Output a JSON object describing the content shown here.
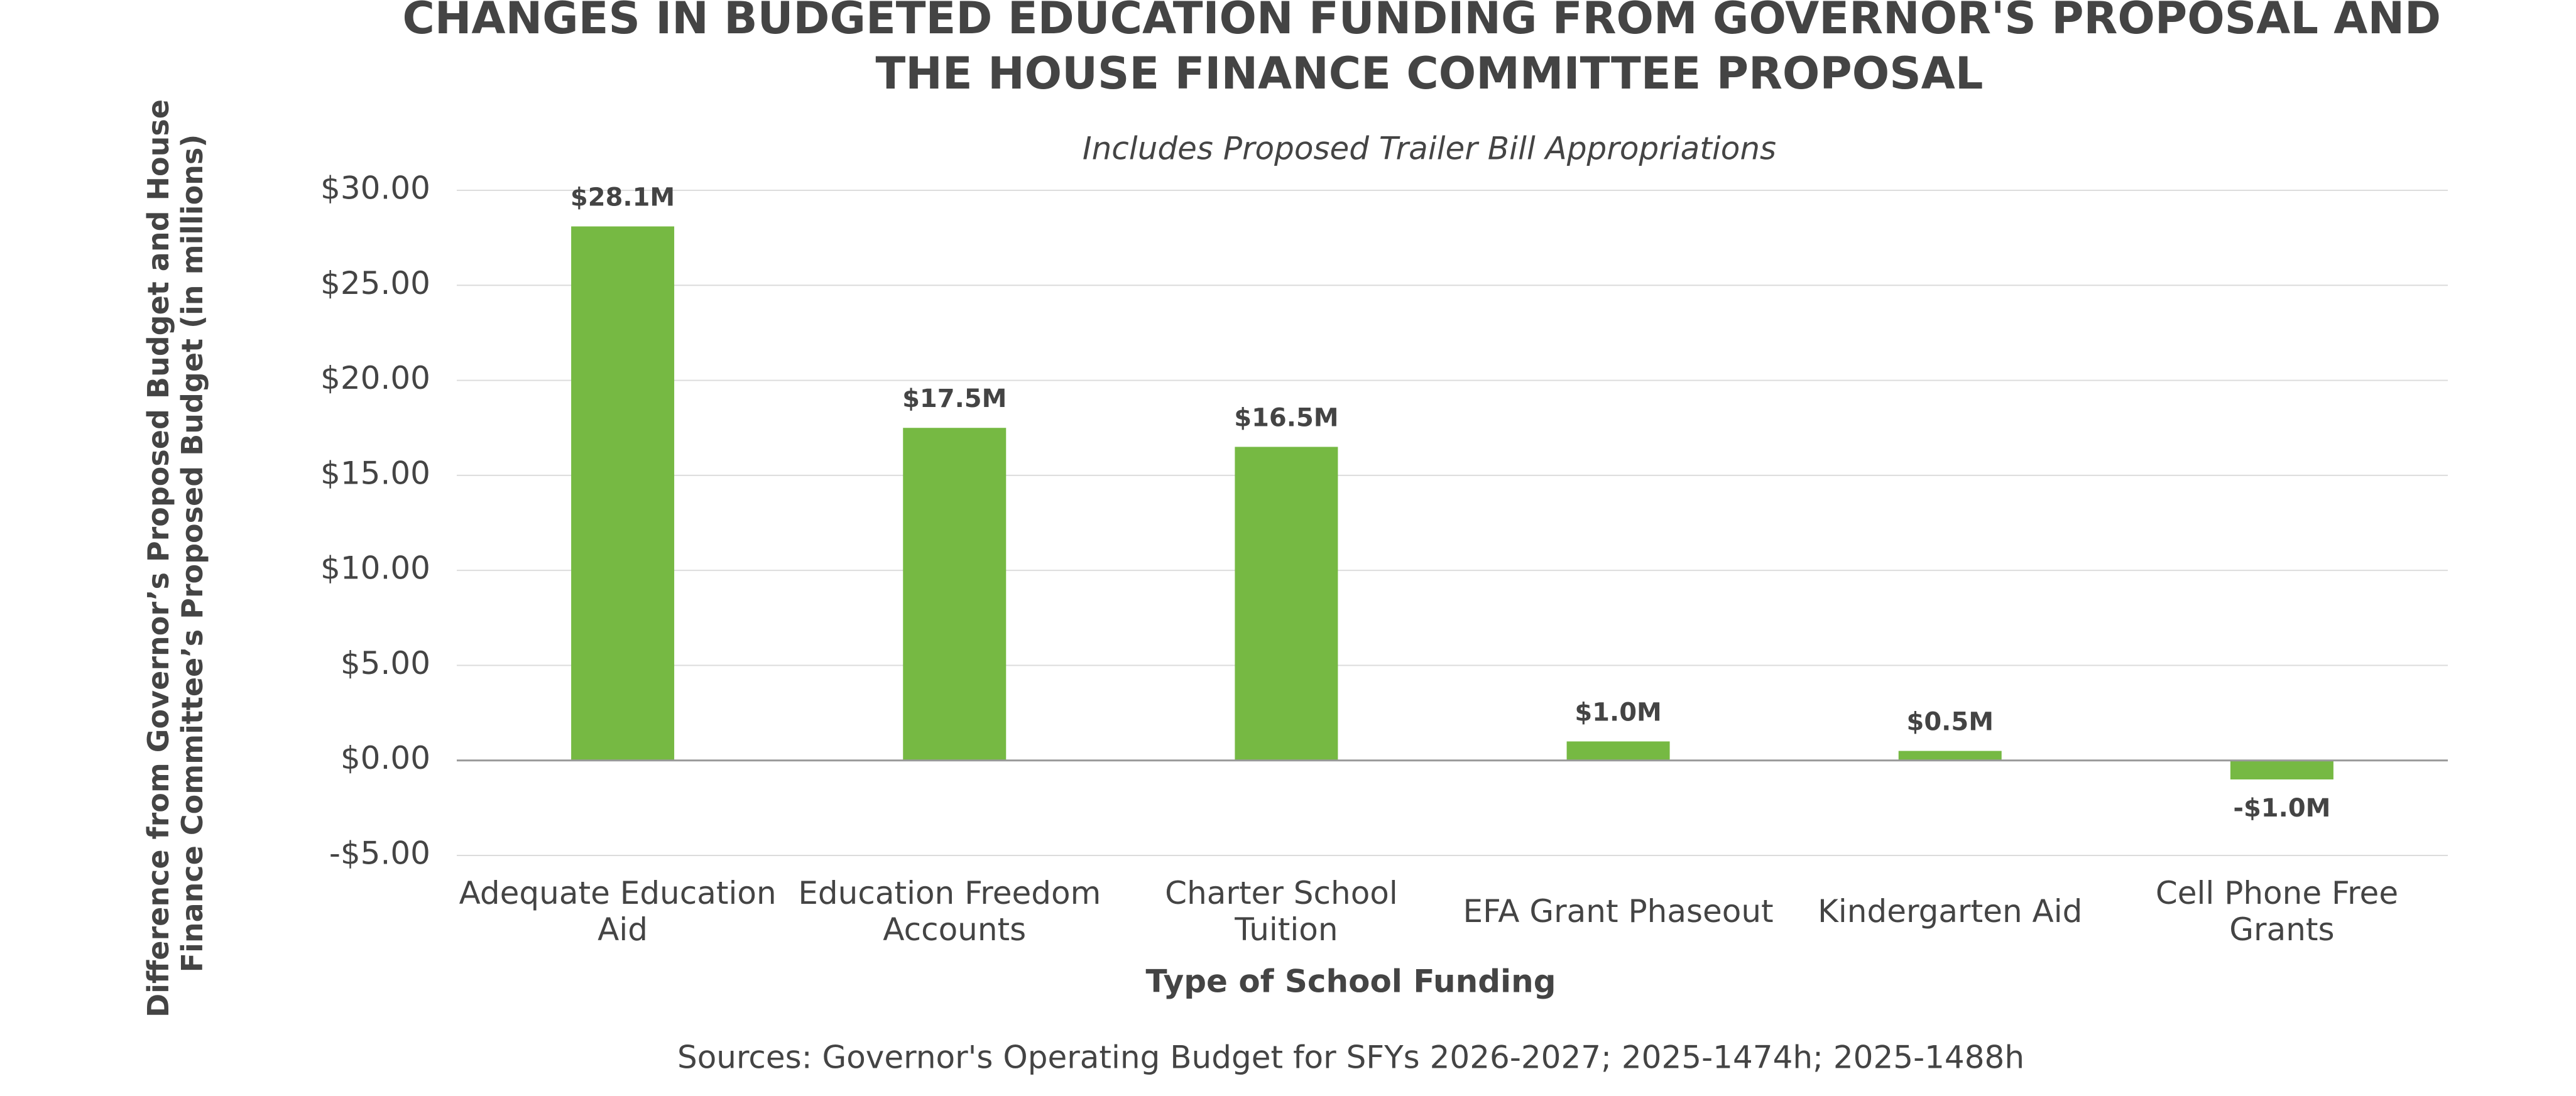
{
  "chart_data": {
    "type": "bar",
    "title": "CHANGES IN BUDGETED EDUCATION FUNDING FROM GOVERNOR'S PROPOSAL AND THE HOUSE FINANCE COMMITTEE PROPOSAL",
    "subtitle": "Includes Proposed Trailer Bill Appropriations",
    "x_label": "Type of School Funding",
    "y_label": "Difference from Governor’s Proposed Budget and House Finance Committee’s Proposed Budget (in millions)",
    "source": "Sources: Governor's Operating Budget for SFYs 2026-2027; 2025-1474h; 2025-1488h",
    "categories": [
      "Adequate Education Aid",
      "Education Freedom Accounts",
      "Charter School Tuition",
      "EFA Grant Phaseout",
      "Kindergarten Aid",
      "Cell Phone Free Grants"
    ],
    "values": [
      28.1,
      17.5,
      16.5,
      1.0,
      0.5,
      -1.0
    ],
    "value_labels": [
      "$28.1M",
      "$17.5M",
      "$16.5M",
      "$1.0M",
      "$0.5M",
      "-$1.0M"
    ],
    "color": "#76b943",
    "ylim": [
      -5,
      30
    ],
    "yticks": [
      {
        "value": -5,
        "label": "-$5.00"
      },
      {
        "value": 0,
        "label": "$0.00"
      },
      {
        "value": 5,
        "label": "$5.00"
      },
      {
        "value": 10,
        "label": "$10.00"
      },
      {
        "value": 15,
        "label": "$15.00"
      },
      {
        "value": 20,
        "label": "$20.00"
      },
      {
        "value": 25,
        "label": "$25.00"
      },
      {
        "value": 30,
        "label": "$30.00"
      }
    ],
    "grid": true
  }
}
